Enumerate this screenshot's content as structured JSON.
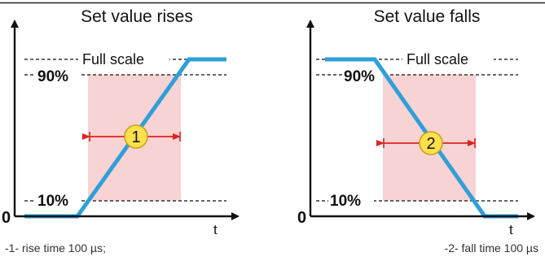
{
  "colors": {
    "ramp": "#2f9fd8",
    "band": "#f8d3d3",
    "arrow": "#e02020",
    "marker_fill": "#fde14b",
    "marker_stroke": "#c8a21a",
    "axis": "#111111"
  },
  "panels": [
    {
      "title": "Set value rises",
      "full_scale_label": "Full scale",
      "level_90": "90%",
      "level_10": "10%",
      "zero_label": "0",
      "t_label": "t",
      "marker": "1",
      "caption": "-1- rise time 100 µs;"
    },
    {
      "title": "Set value falls",
      "full_scale_label": "Full scale",
      "level_90": "90%",
      "level_10": "10%",
      "zero_label": "0",
      "t_label": "t",
      "marker": "2",
      "caption": "-2- fall time 100 µs"
    }
  ]
}
